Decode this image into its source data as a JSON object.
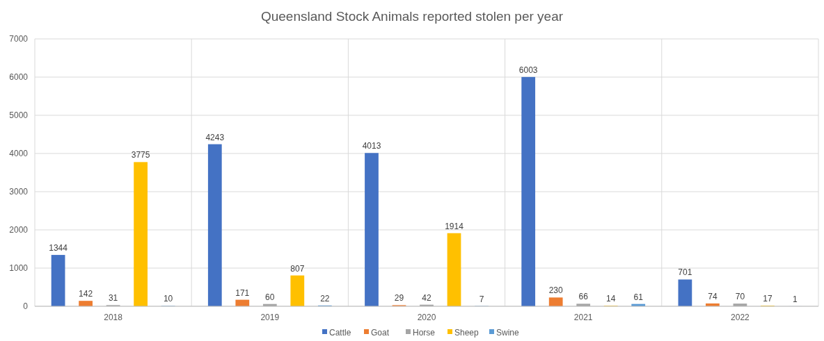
{
  "chart_data": {
    "type": "bar",
    "title": "Queensland Stock Animals reported stolen per year",
    "categories": [
      "2018",
      "2019",
      "2020",
      "2021",
      "2022"
    ],
    "series": [
      {
        "name": "Cattle",
        "color": "#4472c4",
        "values": [
          1344,
          4243,
          4013,
          6003,
          701
        ]
      },
      {
        "name": "Goat",
        "color": "#ed7d31",
        "values": [
          142,
          171,
          29,
          230,
          74
        ]
      },
      {
        "name": "Horse",
        "color": "#a5a5a5",
        "values": [
          31,
          60,
          42,
          66,
          70
        ]
      },
      {
        "name": "Sheep",
        "color": "#ffc000",
        "values": [
          3775,
          807,
          1914,
          14,
          17
        ]
      },
      {
        "name": "Swine",
        "color": "#5b9bd5",
        "values": [
          10,
          22,
          7,
          61,
          1
        ]
      }
    ],
    "ylim": [
      0,
      7000
    ],
    "yticks": [
      0,
      1000,
      2000,
      3000,
      4000,
      5000,
      6000,
      7000
    ],
    "grid": "y",
    "legend": "bottom",
    "data_labels": true
  }
}
